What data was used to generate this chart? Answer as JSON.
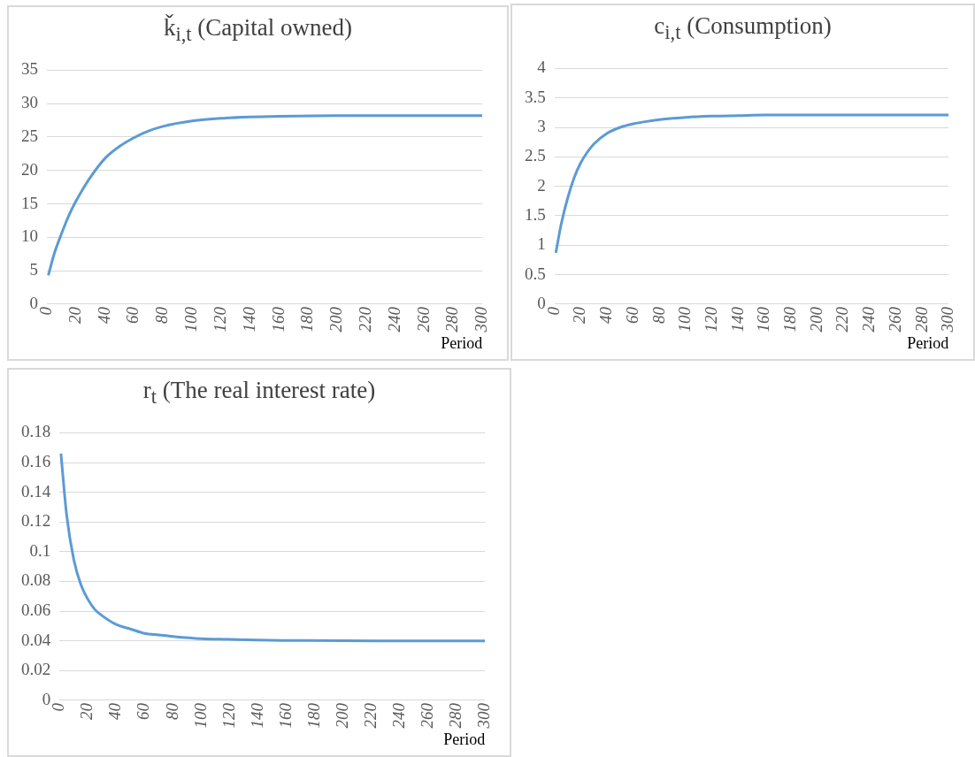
{
  "chart_data": [
    {
      "type": "line",
      "title": "ǩ$_{i,t}$ (Capital owned)",
      "xlabel": "Period",
      "x": [
        1,
        5,
        10,
        15,
        20,
        25,
        30,
        40,
        50,
        60,
        70,
        80,
        100,
        120,
        140,
        160,
        200,
        250,
        300
      ],
      "xlim": [
        0,
        300
      ],
      "xticks": [
        0,
        20,
        40,
        60,
        80,
        100,
        120,
        140,
        160,
        180,
        200,
        220,
        240,
        260,
        280,
        300
      ],
      "ylim": [
        0,
        35
      ],
      "yticks": [
        0,
        5,
        10,
        15,
        20,
        25,
        30,
        35
      ],
      "grid": "y",
      "marker": "none",
      "series": [
        {
          "color": "#5b9bd5",
          "values": [
            4.3,
            7.5,
            10.5,
            13.2,
            15.4,
            17.3,
            19,
            21.8,
            23.6,
            24.9,
            25.9,
            26.6,
            27.4,
            27.8,
            28.0,
            28.1,
            28.2,
            28.2,
            28.2
          ]
        }
      ]
    },
    {
      "type": "line",
      "title": "c$_{i,t}$ (Consumption)",
      "xlabel": "Period",
      "x": [
        1,
        5,
        10,
        15,
        20,
        25,
        30,
        40,
        50,
        60,
        70,
        80,
        100,
        120,
        140,
        160,
        200,
        250,
        300
      ],
      "xlim": [
        0,
        300
      ],
      "xticks": [
        0,
        20,
        40,
        60,
        80,
        100,
        120,
        140,
        160,
        180,
        200,
        220,
        240,
        260,
        280,
        300
      ],
      "ylim": [
        0,
        4
      ],
      "yticks": [
        0,
        0.5,
        1,
        1.5,
        2,
        2.5,
        3,
        3.5,
        4
      ],
      "grid": "y",
      "marker": "none",
      "series": [
        {
          "color": "#5b9bd5",
          "values": [
            0.87,
            1.35,
            1.8,
            2.15,
            2.4,
            2.58,
            2.72,
            2.9,
            3.0,
            3.06,
            3.1,
            3.13,
            3.17,
            3.19,
            3.2,
            3.21,
            3.21,
            3.21,
            3.21
          ]
        }
      ]
    },
    {
      "type": "line",
      "title": "r$_{t}$ (The real interest rate)",
      "xlabel": "Period",
      "x": [
        1,
        5,
        10,
        15,
        20,
        25,
        30,
        40,
        50,
        60,
        70,
        80,
        100,
        120,
        140,
        160,
        200,
        250,
        300
      ],
      "xlim": [
        0,
        300
      ],
      "xticks": [
        0,
        20,
        40,
        60,
        80,
        100,
        120,
        140,
        160,
        180,
        200,
        220,
        240,
        260,
        280,
        300
      ],
      "ylim": [
        0,
        0.18
      ],
      "yticks": [
        0,
        0.02,
        0.04,
        0.06,
        0.08,
        0.1,
        0.12,
        0.14,
        0.16,
        0.18
      ],
      "grid": "y",
      "marker": "none",
      "series": [
        {
          "color": "#5b9bd5",
          "values": [
            0.166,
            0.125,
            0.095,
            0.078,
            0.068,
            0.061,
            0.057,
            0.051,
            0.048,
            0.045,
            0.044,
            0.043,
            0.0415,
            0.041,
            0.0405,
            0.0403,
            0.0401,
            0.04,
            0.04
          ]
        }
      ]
    }
  ]
}
